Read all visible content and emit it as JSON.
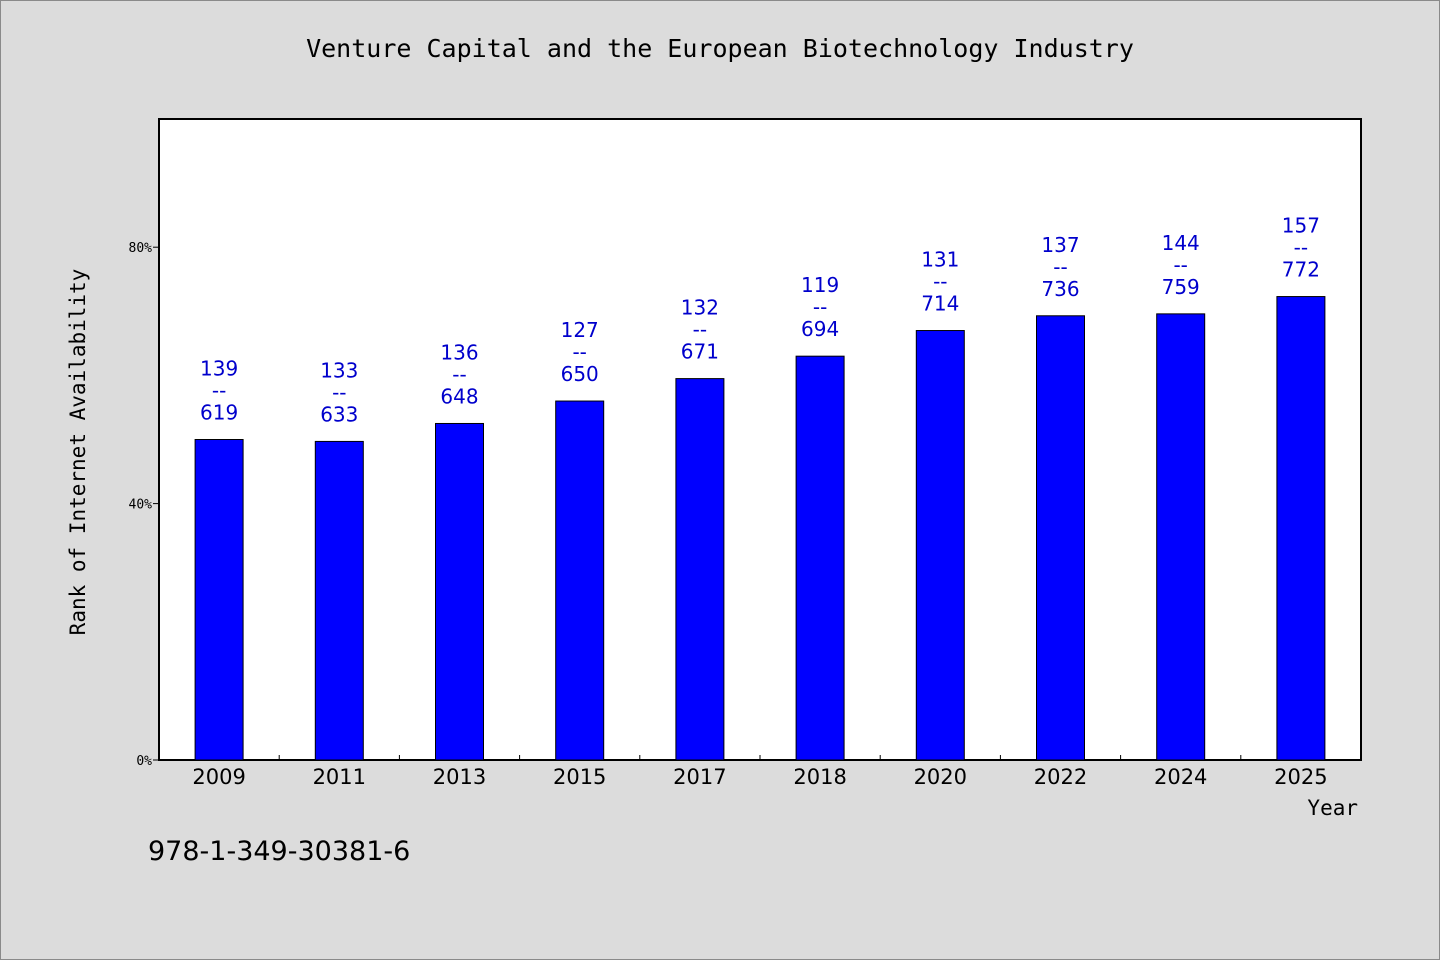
{
  "chart_data": {
    "type": "bar",
    "title": "Venture Capital and the European Biotechnology Industry",
    "xlabel": "Year",
    "ylabel": "Rank of Internet Availability",
    "categories": [
      "2009",
      "2011",
      "2013",
      "2015",
      "2017",
      "2018",
      "2020",
      "2022",
      "2024",
      "2025"
    ],
    "values": [
      50,
      49.7,
      52.5,
      56,
      59.5,
      63,
      67,
      69.3,
      69.6,
      72.3
    ],
    "bar_labels": [
      {
        "top": "139",
        "sep": "--",
        "bottom": "619"
      },
      {
        "top": "133",
        "sep": "--",
        "bottom": "633"
      },
      {
        "top": "136",
        "sep": "--",
        "bottom": "648"
      },
      {
        "top": "127",
        "sep": "--",
        "bottom": "650"
      },
      {
        "top": "132",
        "sep": "--",
        "bottom": "671"
      },
      {
        "top": "119",
        "sep": "--",
        "bottom": "694"
      },
      {
        "top": "131",
        "sep": "--",
        "bottom": "714"
      },
      {
        "top": "137",
        "sep": "--",
        "bottom": "736"
      },
      {
        "top": "144",
        "sep": "--",
        "bottom": "759"
      },
      {
        "top": "157",
        "sep": "--",
        "bottom": "772"
      }
    ],
    "ylim": [
      0,
      100
    ],
    "yticks": [
      0,
      40,
      80
    ],
    "ytick_labels": [
      "0%",
      "40%",
      "80%"
    ],
    "grid": false,
    "colors": {
      "bar": "#0000ff",
      "label": "#0000cc",
      "plot_bg": "#ffffff",
      "page_bg": "#dcdcdc"
    }
  },
  "footer": {
    "isbn": "978-1-349-30381-6"
  }
}
